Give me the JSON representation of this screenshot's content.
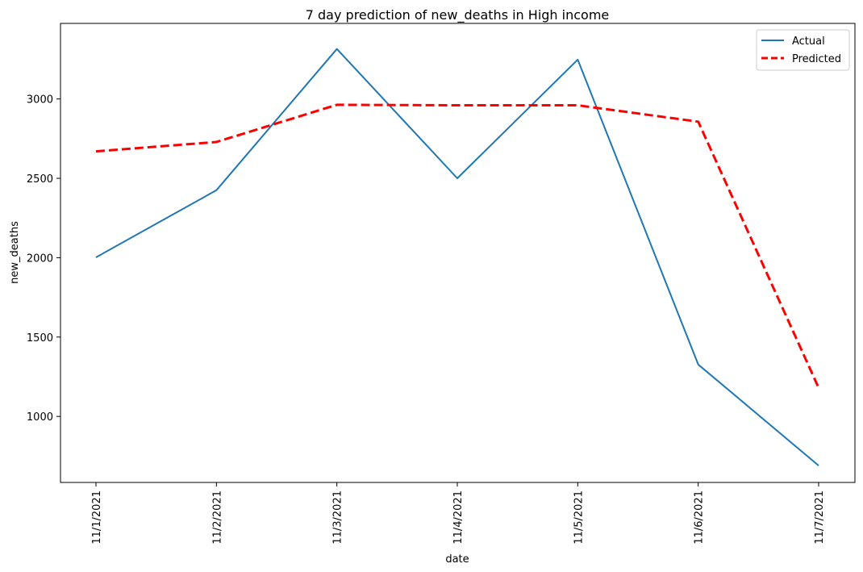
{
  "chart_data": {
    "type": "line",
    "title": "7 day prediction of new_deaths in High income",
    "xlabel": "date",
    "ylabel": "new_deaths",
    "categories": [
      "11/1/2021",
      "11/2/2021",
      "11/3/2021",
      "11/4/2021",
      "11/5/2021",
      "11/6/2021",
      "11/7/2021"
    ],
    "yticks": [
      1000,
      1500,
      2000,
      2500,
      3000
    ],
    "ylim": [
      584,
      3476
    ],
    "grid": false,
    "legend_position": "top-right",
    "series": [
      {
        "name": "Actual",
        "values": [
          2002,
          2425,
          3315,
          2500,
          3248,
          1327,
          690
        ],
        "color": "#1f77b4",
        "style": "solid"
      },
      {
        "name": "Predicted",
        "values": [
          2670,
          2729,
          2963,
          2960,
          2960,
          2857,
          1180
        ],
        "color": "#ff0000",
        "style": "dashed"
      }
    ]
  }
}
